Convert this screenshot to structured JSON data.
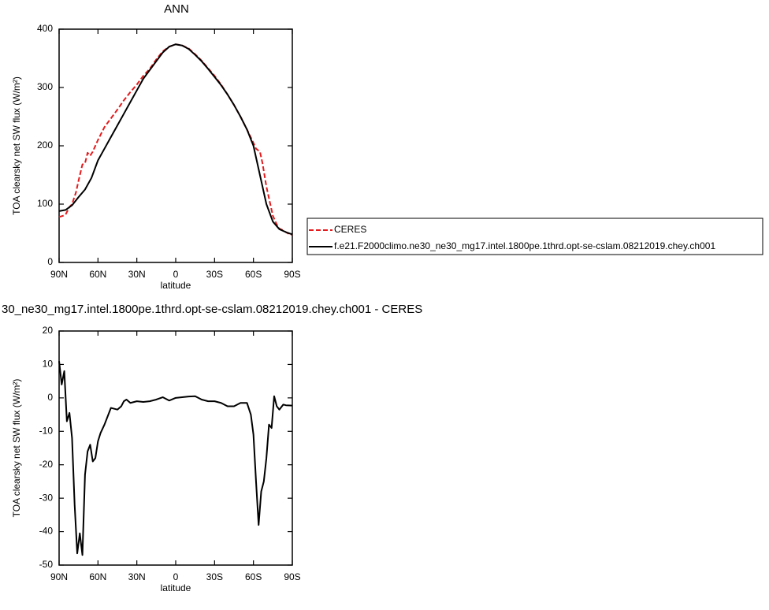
{
  "chart_data": [
    {
      "type": "line",
      "title": "ANN",
      "x_label": "latitude",
      "y_label": "TOA clearsky net SW flux (W/m²)",
      "xlim": [
        90,
        -90
      ],
      "xticks": [
        {
          "value": 90,
          "label": "90N"
        },
        {
          "value": 60,
          "label": "60N"
        },
        {
          "value": 30,
          "label": "30N"
        },
        0,
        {
          "value": -30,
          "label": "30S"
        },
        {
          "value": -60,
          "label": "60S"
        },
        {
          "value": -90,
          "label": "90S"
        }
      ],
      "ylim": [
        0,
        400
      ],
      "yticks": [
        0,
        100,
        200,
        300,
        400
      ],
      "legend": "right",
      "series": [
        {
          "name": "CERES",
          "color": "#e41a1c",
          "dash": true,
          "x": [
            90,
            87,
            85,
            82,
            80,
            77,
            75,
            72,
            70,
            68,
            66,
            64,
            60,
            55,
            50,
            45,
            40,
            35,
            30,
            25,
            20,
            15,
            10,
            5,
            0,
            -5,
            -10,
            -15,
            -20,
            -25,
            -30,
            -35,
            -40,
            -45,
            -50,
            -55,
            -60,
            -62,
            -65,
            -67,
            -70,
            -73,
            -75,
            -78,
            -80,
            -83,
            -85,
            -88,
            -90
          ],
          "values": [
            78,
            80,
            82,
            95,
            100,
            120,
            140,
            168,
            170,
            188,
            183,
            190,
            210,
            232,
            247,
            262,
            278,
            292,
            305,
            320,
            332,
            348,
            362,
            370,
            374,
            372,
            367,
            357,
            346,
            333,
            320,
            305,
            288,
            270,
            250,
            228,
            205,
            195,
            190,
            170,
            130,
            100,
            80,
            65,
            58,
            55,
            52,
            48,
            47
          ]
        },
        {
          "name": "f.e21.F2000climo.ne30_ne30_mg17.intel.1800pe.1thrd.opt-se-cslam.08212019.chey.ch001",
          "color": "#000000",
          "dash": false,
          "x": [
            90,
            85,
            80,
            75,
            70,
            65,
            60,
            55,
            50,
            45,
            40,
            35,
            30,
            25,
            20,
            15,
            10,
            5,
            0,
            -5,
            -10,
            -15,
            -20,
            -25,
            -30,
            -35,
            -40,
            -45,
            -50,
            -55,
            -60,
            -65,
            -70,
            -75,
            -80,
            -85,
            -90
          ],
          "values": [
            88,
            90,
            98,
            112,
            125,
            145,
            175,
            195,
            215,
            235,
            255,
            275,
            295,
            315,
            330,
            345,
            360,
            370,
            374,
            372,
            366,
            356,
            345,
            332,
            318,
            304,
            288,
            270,
            250,
            228,
            200,
            150,
            100,
            70,
            57,
            52,
            48
          ]
        }
      ]
    },
    {
      "type": "line",
      "title": "30_ne30_mg17.intel.1800pe.1thrd.opt-se-cslam.08212019.chey.ch001 - CERES",
      "x_label": "latitude",
      "y_label": "TOA clearsky net SW flux (W/m²)",
      "xlim": [
        90,
        -90
      ],
      "xticks": [
        {
          "value": 90,
          "label": "90N"
        },
        {
          "value": 60,
          "label": "60N"
        },
        {
          "value": 30,
          "label": "30N"
        },
        0,
        {
          "value": -30,
          "label": "30S"
        },
        {
          "value": -60,
          "label": "60S"
        },
        {
          "value": -90,
          "label": "90S"
        }
      ],
      "ylim": [
        -50,
        20
      ],
      "yticks": [
        -50,
        -40,
        -30,
        -20,
        -10,
        0,
        10,
        20
      ],
      "series": [
        {
          "color": "#000000",
          "dash": false,
          "x": [
            90,
            88,
            86,
            84,
            82,
            80,
            78,
            76,
            74,
            72,
            70,
            68,
            66,
            64,
            62,
            60,
            58,
            55,
            50,
            45,
            42,
            40,
            38,
            35,
            30,
            25,
            20,
            15,
            10,
            5,
            0,
            -5,
            -10,
            -15,
            -20,
            -25,
            -30,
            -35,
            -40,
            -45,
            -50,
            -55,
            -58,
            -60,
            -62,
            -64,
            -66,
            -68,
            -70,
            -72,
            -74,
            -76,
            -78,
            -80,
            -83,
            -85,
            -90
          ],
          "values": [
            11,
            4,
            8,
            -7,
            -4.5,
            -12,
            -32,
            -46.5,
            -40.5,
            -47,
            -23,
            -16,
            -14,
            -19,
            -18,
            -13,
            -10.5,
            -8,
            -3,
            -3.5,
            -2.5,
            -1,
            -0.5,
            -1.5,
            -1,
            -1.2,
            -1,
            -0.5,
            0.2,
            -0.8,
            0,
            0.2,
            0.4,
            0.5,
            -0.5,
            -1,
            -1,
            -1.5,
            -2.5,
            -2.5,
            -1.5,
            -1.5,
            -5,
            -11,
            -25,
            -38,
            -28,
            -25,
            -18,
            -8,
            -9,
            0.5,
            -2.5,
            -3.5,
            -2,
            -2.2,
            -2.3
          ]
        }
      ]
    }
  ]
}
